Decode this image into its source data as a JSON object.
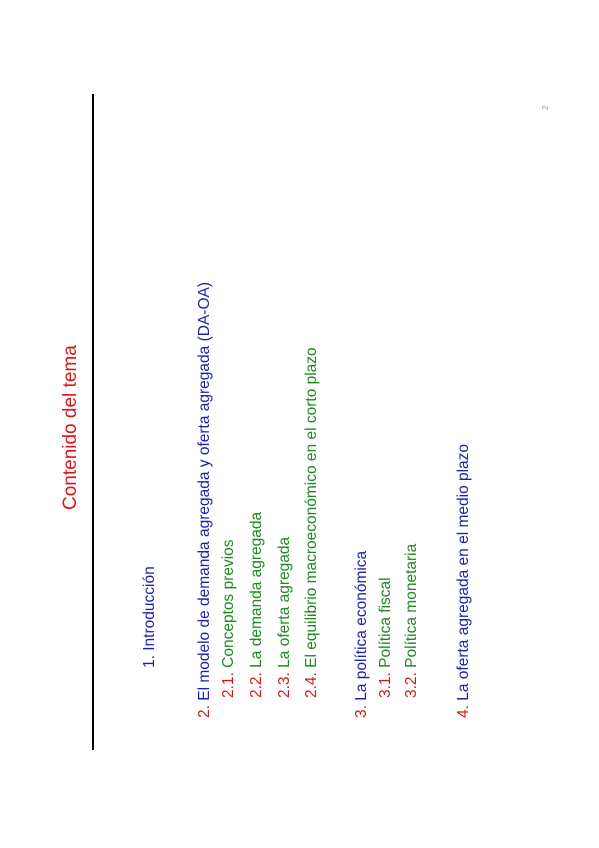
{
  "title": "Contenido del tema",
  "page_number": "2",
  "items": [
    {
      "num": "1.",
      "text": "Introducción"
    },
    {
      "num": "2.",
      "text": "El modelo de demanda agregada y oferta agregada (DA-OA)"
    },
    {
      "num": "2.1.",
      "text": "Conceptos previos"
    },
    {
      "num": "2.2.",
      "text": "La demanda agregada"
    },
    {
      "num": "2.3.",
      "text": "La oferta agregada"
    },
    {
      "num": "2.4.",
      "text": "El equilibrio macroeconómico en el corto plazo"
    },
    {
      "num": "3.",
      "text": "La política económica"
    },
    {
      "num": "3.1.",
      "text": "Política fiscal"
    },
    {
      "num": "3.2.",
      "text": "Política monetaria"
    },
    {
      "num": "4.",
      "text": "La oferta agregada en el medio plazo"
    }
  ],
  "colors": {
    "title": "#d7191c",
    "main_text": "#1e22a8",
    "numbers": "#cc1a1a",
    "subsection_text": "#1d8a1d"
  }
}
